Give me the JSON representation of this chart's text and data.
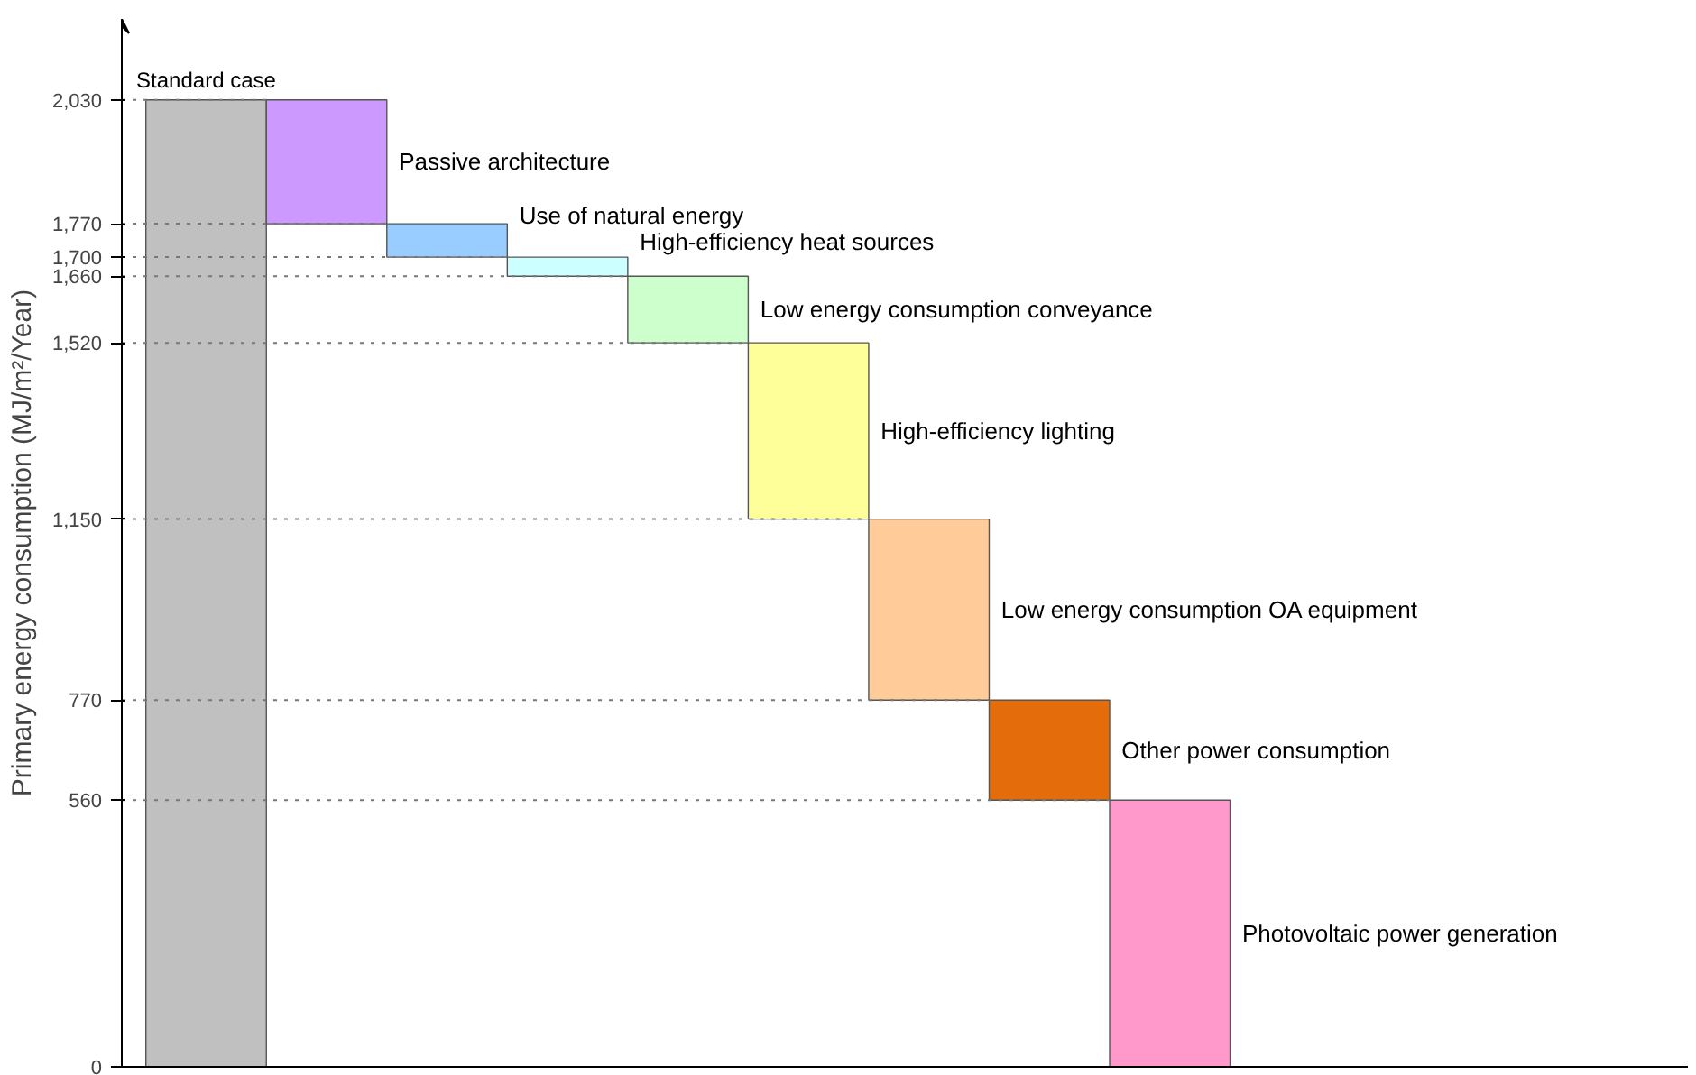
{
  "chart_data": {
    "type": "bar",
    "ylabel": "Primary energy consumption (MJ/m²/Year)",
    "categories": [
      null,
      null,
      null,
      null,
      null,
      null,
      null,
      null,
      null
    ],
    "annotations": [
      "Standard case",
      "Passive architecture",
      "Use of natural energy",
      "High-efficiency heat sources",
      "Low energy consumption conveyance",
      "High-efficiency lighting",
      "Low energy consumption OA equipment",
      "Other power consumption",
      "Photovoltaic power generation"
    ],
    "values": [
      2030,
      260,
      70,
      40,
      140,
      370,
      380,
      210,
      560
    ],
    "base": [
      0,
      1770,
      1700,
      1660,
      1520,
      1150,
      770,
      560,
      0
    ],
    "colors": [
      "#c0c0c0",
      "#cc99ff",
      "#99ccff",
      "#ccffff",
      "#ccffcc",
      "#ffff99",
      "#ffcc99",
      "#e46c0a",
      "#ff99cc"
    ],
    "ylim": [
      0,
      2200
    ],
    "yticks": [
      0,
      {
        "value": 560,
        "label": "560"
      },
      {
        "value": 770,
        "label": "770"
      },
      {
        "value": 1150,
        "label": "1,150"
      },
      {
        "value": 1520,
        "label": "1,520"
      },
      {
        "value": 1660,
        "label": "1,660"
      },
      {
        "value": 1700,
        "label": "1,700"
      },
      {
        "value": 1770,
        "label": "1,770"
      },
      {
        "value": 2030,
        "label": "2,030"
      }
    ],
    "tick_labels": "y",
    "grid": false,
    "ref_lines": [
      {
        "axis": "y",
        "value": 2030,
        "line_style": "dotted"
      },
      {
        "axis": "y",
        "value": 1770,
        "line_style": "dotted"
      },
      {
        "axis": "y",
        "value": 1700,
        "line_style": "dotted"
      },
      {
        "axis": "y",
        "value": 1660,
        "line_style": "dotted"
      },
      {
        "axis": "y",
        "value": 1520,
        "line_style": "dotted"
      },
      {
        "axis": "y",
        "value": 1150,
        "line_style": "dotted"
      },
      {
        "axis": "y",
        "value": 770,
        "line_style": "dotted"
      },
      {
        "axis": "y",
        "value": 560,
        "line_style": "dotted"
      }
    ]
  }
}
